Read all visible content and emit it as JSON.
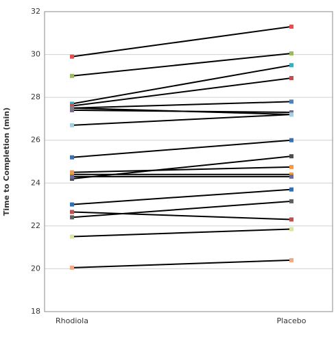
{
  "chart_data": {
    "type": "paired-line",
    "y_label": "Time to Completion (min)",
    "categories": [
      "Rhodiola",
      "Placebo"
    ],
    "ylim": [
      18,
      32
    ],
    "yticks": [
      18,
      20,
      22,
      24,
      26,
      28,
      30,
      32
    ],
    "grid": true,
    "line_color": "#000000",
    "series": [
      {
        "color": "#e05050",
        "values": [
          29.9,
          31.3
        ]
      },
      {
        "color": "#9bbb59",
        "values": [
          29.0,
          30.05
        ]
      },
      {
        "color": "#31b0c0",
        "values": [
          27.7,
          29.5
        ]
      },
      {
        "color": "#c0504d",
        "values": [
          27.6,
          28.9
        ]
      },
      {
        "color": "#4f81bd",
        "values": [
          27.5,
          27.8
        ]
      },
      {
        "color": "#8064a2",
        "values": [
          27.4,
          27.3
        ]
      },
      {
        "color": "#7f7f7f",
        "values": [
          27.5,
          27.2
        ]
      },
      {
        "color": "#9fd0e0",
        "values": [
          26.7,
          27.2
        ]
      },
      {
        "color": "#3a6fb0",
        "values": [
          25.2,
          26.0
        ]
      },
      {
        "color": "#4d4d4d",
        "values": [
          24.2,
          25.25
        ]
      },
      {
        "color": "#f79646",
        "values": [
          24.5,
          24.75
        ]
      },
      {
        "color": "#e8a040",
        "values": [
          24.4,
          24.4
        ]
      },
      {
        "color": "#6a6aa0",
        "values": [
          24.3,
          24.3
        ]
      },
      {
        "color": "#2c6fbb",
        "values": [
          23.0,
          23.7
        ]
      },
      {
        "color": "#c0504d",
        "values": [
          22.65,
          22.3
        ]
      },
      {
        "color": "#606060",
        "values": [
          22.4,
          23.15
        ]
      },
      {
        "color": "#d9e8a0",
        "values": [
          21.5,
          21.85
        ]
      },
      {
        "color": "#f4a880",
        "values": [
          20.05,
          20.4
        ]
      }
    ]
  }
}
